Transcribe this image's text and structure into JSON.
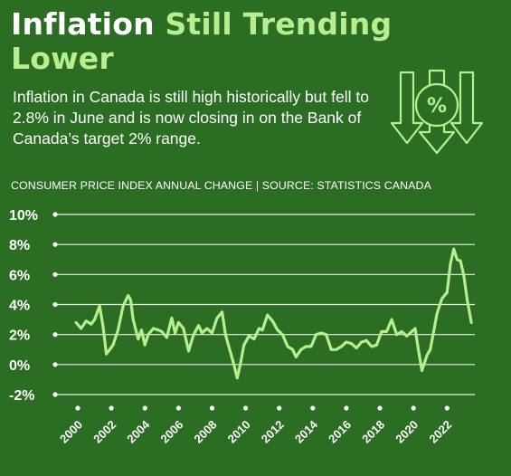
{
  "header": {
    "title_white": "Inflation",
    "title_green": "Still Trending Lower",
    "subtitle": "Inflation in Canada is still high historically but fell to 2.8% in June and is now closing in on the Bank of Canada’s target 2% range.",
    "source": "CONSUMER PRICE INDEX ANNUAL CHANGE | SOURCE: STATISTICS CANADA",
    "icon": "percent-down-arrows-icon",
    "icon_glyph": "%"
  },
  "colors": {
    "background": "#2b6d23",
    "accent": "#b8ee8e",
    "text": "#ffffff",
    "line": "#b8ee8e"
  },
  "chart_data": {
    "type": "line",
    "title": "",
    "xlabel": "",
    "ylabel": "",
    "y_ticks": [
      10,
      8,
      6,
      4,
      2,
      0,
      -2
    ],
    "y_tick_labels": [
      "10%",
      "8%",
      "6%",
      "4%",
      "2%",
      "0%",
      "-2%"
    ],
    "ylim": [
      -2,
      10
    ],
    "x_tick_labels": [
      "2000",
      "2002",
      "2004",
      "2006",
      "2008",
      "2010",
      "2012",
      "2014",
      "2016",
      "2018",
      "2020",
      "2022"
    ],
    "x_ticks": [
      2000,
      2002,
      2004,
      2006,
      2008,
      2010,
      2012,
      2014,
      2016,
      2018,
      2020,
      2022
    ],
    "xlim": [
      2000,
      2023.6
    ],
    "grid": true,
    "series": [
      {
        "x": [
          1999.9,
          2000.2,
          2000.5,
          2000.8,
          2001.0,
          2001.3,
          2001.5,
          2001.7,
          2001.9,
          2002.1,
          2002.4,
          2002.7,
          2003.0,
          2003.15,
          2003.3,
          2003.6,
          2003.8,
          2004.0,
          2004.2,
          2004.5,
          2004.8,
          2005.0,
          2005.3,
          2005.6,
          2005.8,
          2006.0,
          2006.3,
          2006.6,
          2006.9,
          2007.2,
          2007.4,
          2007.7,
          2008.0,
          2008.3,
          2008.6,
          2008.8,
          2009.0,
          2009.3,
          2009.5,
          2009.7,
          2009.9,
          2010.2,
          2010.5,
          2010.8,
          2011.0,
          2011.3,
          2011.6,
          2011.9,
          2012.2,
          2012.5,
          2012.8,
          2013.0,
          2013.3,
          2013.6,
          2013.9,
          2014.2,
          2014.5,
          2014.8,
          2015.1,
          2015.4,
          2015.7,
          2016.0,
          2016.3,
          2016.6,
          2016.9,
          2017.2,
          2017.5,
          2017.8,
          2018.1,
          2018.4,
          2018.7,
          2019.0,
          2019.3,
          2019.6,
          2019.9,
          2020.1,
          2020.3,
          2020.5,
          2020.8,
          2021.0,
          2021.2,
          2021.4,
          2021.7,
          2022.0,
          2022.2,
          2022.4,
          2022.6,
          2022.8,
          2023.0,
          2023.2,
          2023.45
        ],
        "y": [
          2.8,
          2.4,
          2.9,
          2.7,
          3.0,
          3.9,
          2.6,
          0.7,
          1.0,
          1.3,
          2.3,
          3.9,
          4.6,
          4.3,
          3.0,
          1.7,
          2.3,
          1.3,
          2.0,
          2.4,
          2.3,
          2.2,
          1.8,
          3.1,
          2.1,
          2.8,
          2.4,
          0.9,
          2.0,
          2.6,
          2.1,
          2.4,
          2.1,
          3.1,
          3.5,
          2.0,
          1.2,
          0.0,
          -0.9,
          0.1,
          1.3,
          1.9,
          1.7,
          2.4,
          2.3,
          3.3,
          2.9,
          2.3,
          2.0,
          1.2,
          1.0,
          0.5,
          1.0,
          1.2,
          1.2,
          2.0,
          2.1,
          2.0,
          1.0,
          1.0,
          1.2,
          1.5,
          1.4,
          1.1,
          1.5,
          1.6,
          1.2,
          1.3,
          2.2,
          2.2,
          3.0,
          2.0,
          2.2,
          1.9,
          2.2,
          2.4,
          0.9,
          -0.4,
          0.6,
          1.0,
          2.2,
          3.4,
          4.4,
          4.8,
          6.7,
          7.7,
          7.0,
          6.9,
          5.9,
          4.3,
          2.8
        ]
      }
    ]
  }
}
